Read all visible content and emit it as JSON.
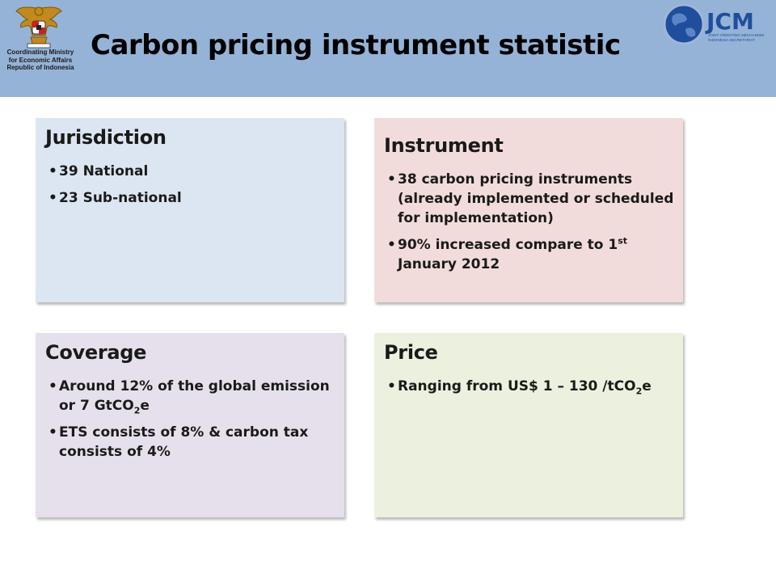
{
  "header": {
    "title": "Carbon pricing instrument statistic",
    "emblem_caption": [
      "Coordinating Ministry",
      "for Economic Affairs",
      "Republic of Indonesia"
    ],
    "jcm_logo": {
      "wordmark": "JCM",
      "subtitle_line1": "JOINT CREDITING MECHANISM",
      "subtitle_line2": "INDONESIA SECRETARIAT"
    }
  },
  "cards": {
    "jurisdiction": {
      "title": "Jurisdiction",
      "items": [
        "39 National",
        "23 Sub-national"
      ]
    },
    "instrument": {
      "title": "Instrument",
      "item1": "38 carbon pricing instruments (already implemented or scheduled for implementation)",
      "item2_pre": "90% increased compare to 1",
      "item2_sup": "st",
      "item2_post": " January 2012"
    },
    "coverage": {
      "title": "Coverage",
      "item1_pre": "Around 12% of the global emission or 7 GtCO",
      "item1_sub": "2",
      "item1_post": "e",
      "item2": "ETS consists of 8% & carbon tax consists of 4%"
    },
    "price": {
      "title": "Price",
      "item1_pre": "Ranging from US$ 1 – 130 /tCO",
      "item1_sub": "2",
      "item1_post": "e"
    }
  },
  "colors": {
    "header_bg": "#95b3d7",
    "jurisdiction_bg": "#dce6f2",
    "instrument_bg": "#f2dcdb",
    "coverage_bg": "#e6e0ec",
    "price_bg": "#ebf1de",
    "jcm_blue": "#1f4e9c"
  }
}
